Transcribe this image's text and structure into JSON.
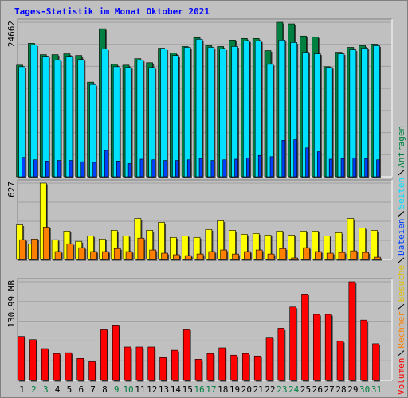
{
  "chart_data": [
    {
      "type": "bar",
      "title": "Tages-Statistik im Monat Oktober 2021",
      "ylim": [
        0,
        24662
      ],
      "yticks": [
        24662
      ],
      "grid": true,
      "series": [
        {
          "name": "Anfragen",
          "color": "#008040",
          "values": [
            17818,
            21305,
            19497,
            19497,
            19626,
            19368,
            15107,
            23629,
            17948,
            17818,
            18851,
            18206,
            20530,
            19755,
            20788,
            22209,
            20917,
            20788,
            21821,
            22080,
            22080,
            20143,
            24662,
            24403,
            22467,
            22338,
            17560,
            19884,
            20659,
            20917,
            21176
          ]
        },
        {
          "name": "Seiten",
          "color": "#00e0ff",
          "values": [
            17560,
            21047,
            19239,
            18593,
            19239,
            18722,
            14720,
            20401,
            17560,
            17431,
            18593,
            17431,
            20401,
            19368,
            20659,
            21951,
            20659,
            20401,
            20788,
            21692,
            21692,
            17948,
            21821,
            21434,
            19884,
            19626,
            17431,
            19626,
            20272,
            20530,
            20917
          ]
        },
        {
          "name": "Dateien",
          "color": "#0040ff",
          "values": [
            3100,
            2700,
            2500,
            2600,
            2600,
            2400,
            2300,
            4200,
            2500,
            2100,
            2800,
            2700,
            2600,
            2600,
            2700,
            2900,
            2600,
            2700,
            2800,
            3000,
            3400,
            3200,
            5800,
            5900,
            4600,
            4000,
            2800,
            2900,
            3000,
            2900,
            2700
          ]
        }
      ]
    },
    {
      "type": "bar",
      "ylim": [
        0,
        627
      ],
      "yticks": [
        627
      ],
      "grid": true,
      "series": [
        {
          "name": "Besuche",
          "color": "#ffff00",
          "values": [
            284,
            129,
            627,
            162,
            233,
            149,
            194,
            168,
            239,
            194,
            336,
            239,
            304,
            181,
            194,
            181,
            246,
            317,
            239,
            207,
            213,
            200,
            233,
            200,
            233,
            233,
            194,
            220,
            336,
            259,
            239
          ]
        },
        {
          "name": "Rechner",
          "color": "#ff8000",
          "values": [
            162,
            168,
            265,
            65,
            129,
            97,
            65,
            65,
            90,
            65,
            175,
            78,
            52,
            39,
            32,
            45,
            65,
            78,
            45,
            65,
            78,
            45,
            90,
            13,
            97,
            65,
            52,
            58,
            71,
            58,
            19
          ]
        }
      ]
    },
    {
      "type": "bar",
      "ylim": [
        0,
        130.99
      ],
      "yticks": [
        {
          "value": 130.99,
          "label": "130.99 MB"
        }
      ],
      "grid": true,
      "categories": [
        "1",
        "2",
        "3",
        "4",
        "5",
        "6",
        "7",
        "8",
        "9",
        "10",
        "11",
        "12",
        "13",
        "14",
        "15",
        "16",
        "17",
        "18",
        "19",
        "20",
        "21",
        "22",
        "23",
        "24",
        "25",
        "26",
        "27",
        "28",
        "29",
        "30",
        "31"
      ],
      "category_colors": [
        "#000000",
        "#008040",
        "#008040",
        "#000000",
        "#000000",
        "#000000",
        "#000000",
        "#000000",
        "#008040",
        "#008040",
        "#000000",
        "#000000",
        "#000000",
        "#000000",
        "#000000",
        "#008040",
        "#008040",
        "#000000",
        "#000000",
        "#000000",
        "#000000",
        "#000000",
        "#008040",
        "#008040",
        "#000000",
        "#000000",
        "#000000",
        "#000000",
        "#000000",
        "#008040",
        "#008040"
      ],
      "series": [
        {
          "name": "Volumen",
          "color": "#ff0000",
          "values": [
            58.46,
            54.13,
            42.22,
            35.72,
            36.81,
            29.23,
            24.9,
            68.2,
            73.61,
            44.39,
            44.39,
            44.39,
            30.31,
            40.05,
            68.2,
            28.15,
            35.72,
            43.3,
            33.56,
            35.72,
            32.48,
            57.38,
            69.28,
            97.43,
            114.75,
            87.69,
            87.69,
            51.96,
            130.99,
            80.11,
            48.71
          ]
        }
      ]
    }
  ]
}
